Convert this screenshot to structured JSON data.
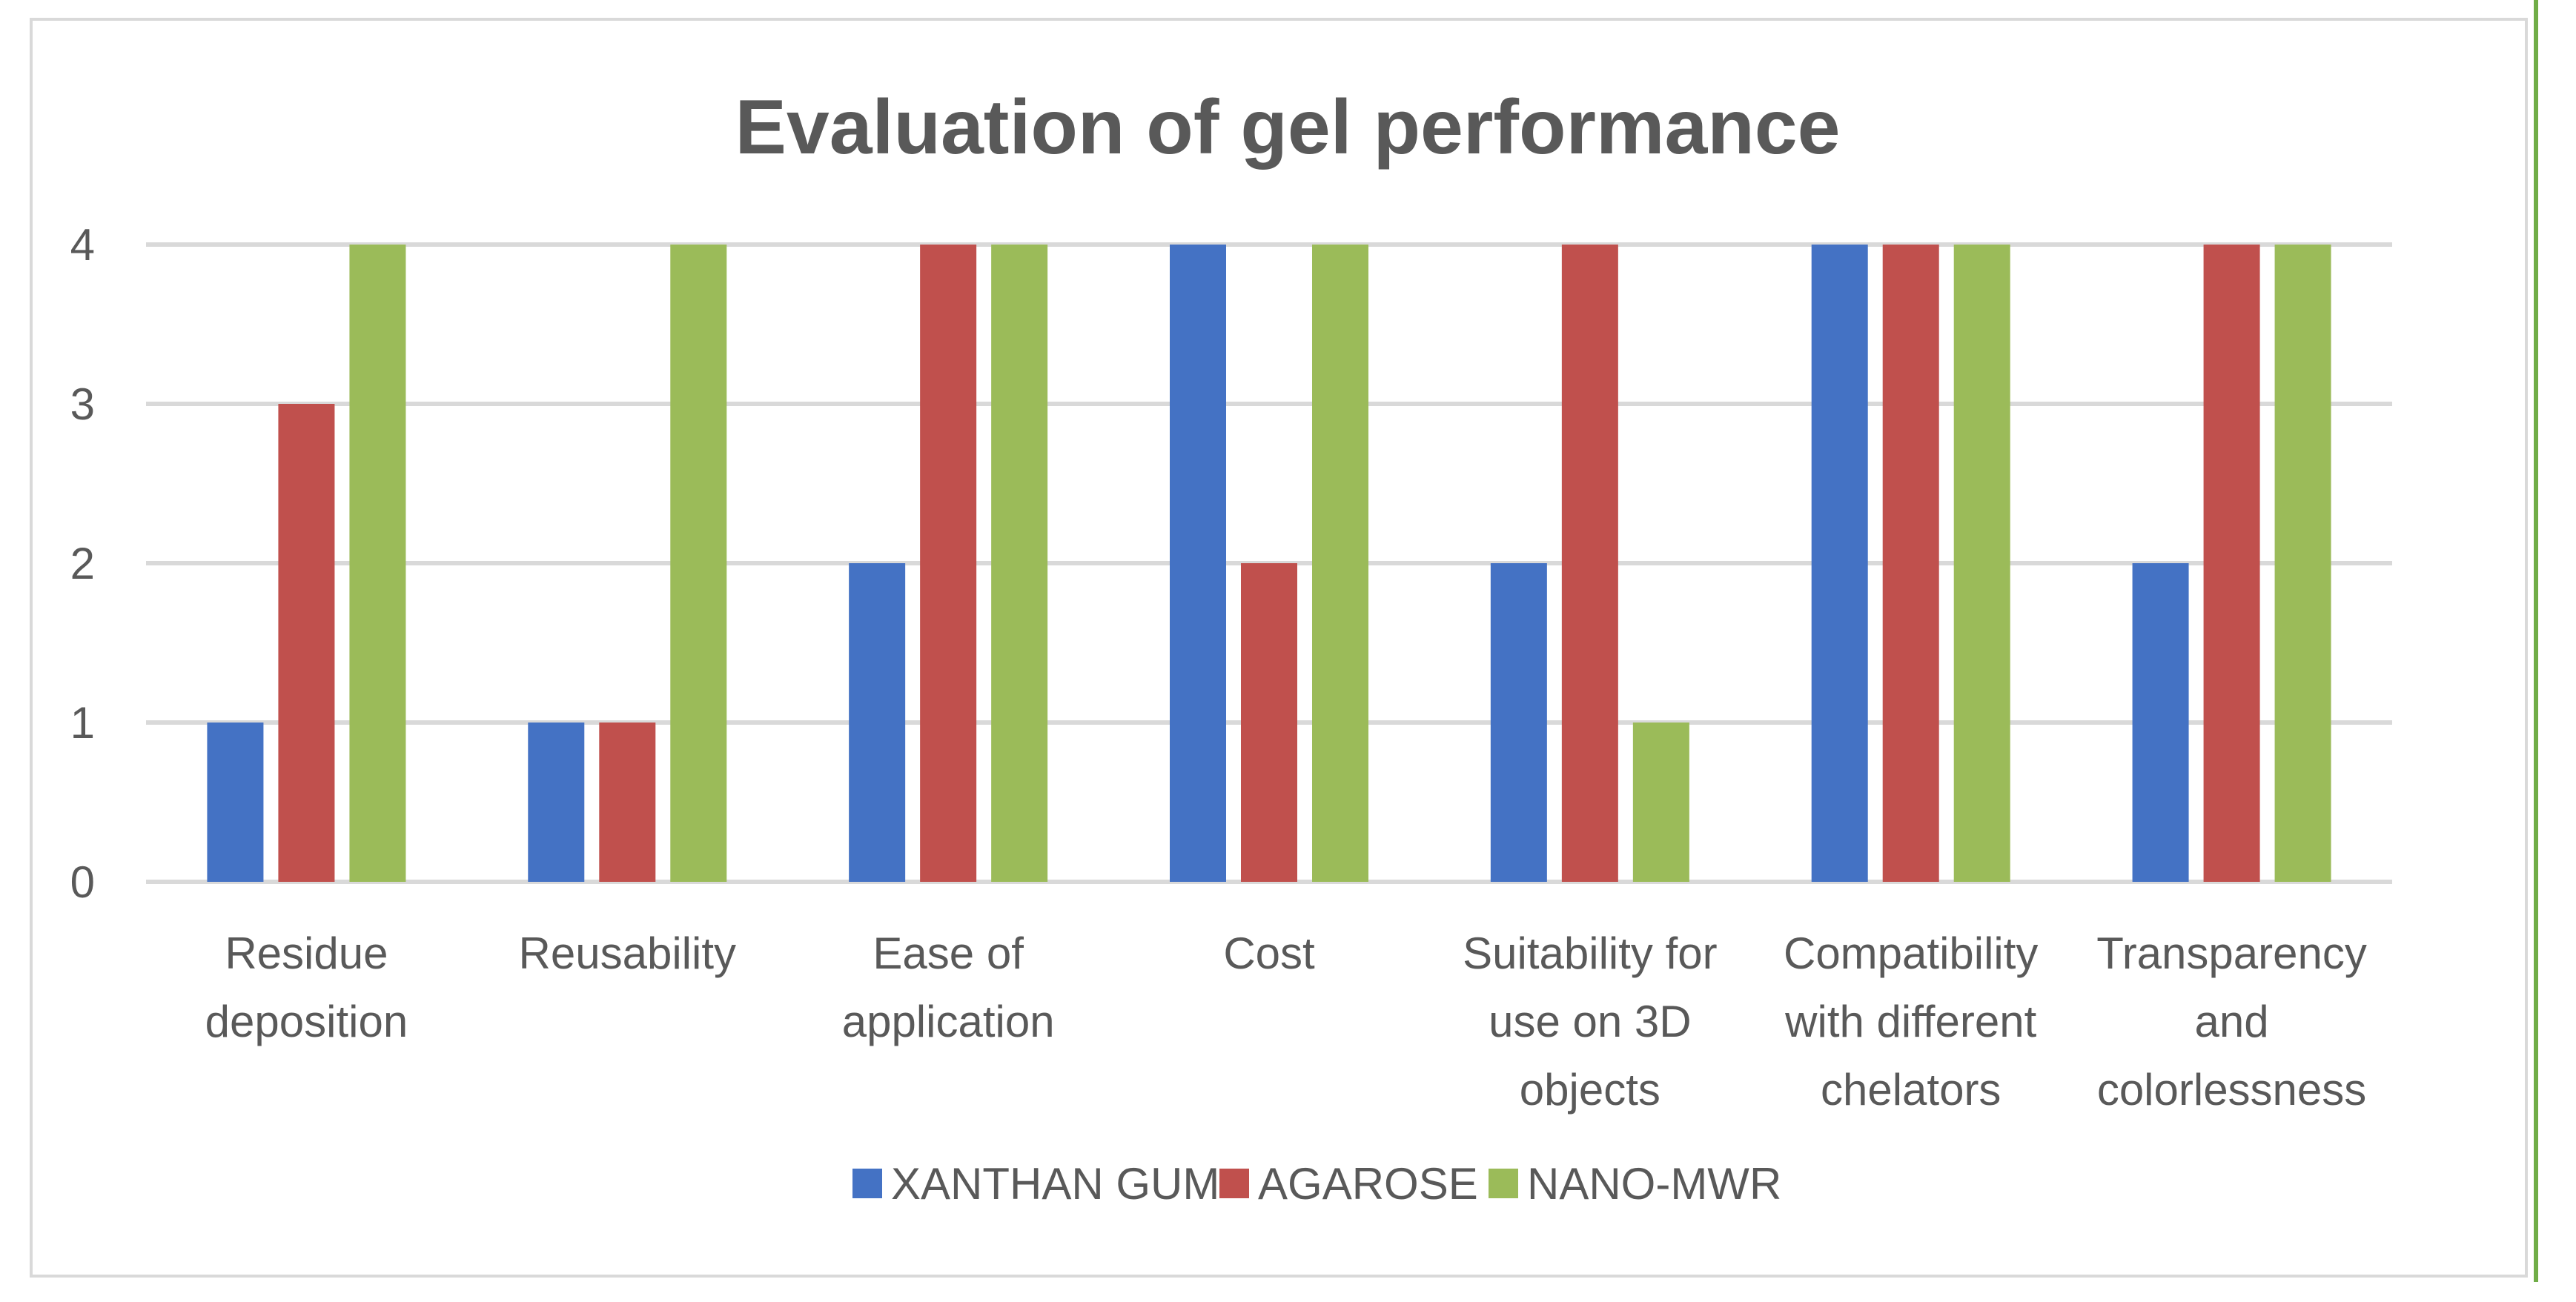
{
  "chart_data": {
    "type": "bar",
    "title": "Evaluation of gel performance",
    "xlabel": "",
    "ylabel": "",
    "ylim": [
      0,
      4
    ],
    "yticks": [
      0,
      1,
      2,
      3,
      4
    ],
    "grid": true,
    "legend_position": "bottom",
    "categories": [
      [
        "Residue",
        "deposition"
      ],
      [
        "Reusability"
      ],
      [
        "Ease of",
        "application"
      ],
      [
        "Cost"
      ],
      [
        "Suitability for",
        "use on 3D",
        "objects"
      ],
      [
        "Compatibility",
        "with different",
        "chelators"
      ],
      [
        "Transparency",
        "and",
        "colorlessness"
      ]
    ],
    "series": [
      {
        "name": "XANTHAN GUM",
        "color": "#4472c4",
        "values": [
          1,
          1,
          2,
          4,
          2,
          4,
          2
        ]
      },
      {
        "name": "AGAROSE",
        "color": "#c0504d",
        "values": [
          3,
          1,
          4,
          2,
          4,
          4,
          4
        ]
      },
      {
        "name": "NANO-MWR",
        "color": "#9bbb59",
        "values": [
          4,
          4,
          4,
          4,
          1,
          4,
          4
        ]
      }
    ]
  }
}
